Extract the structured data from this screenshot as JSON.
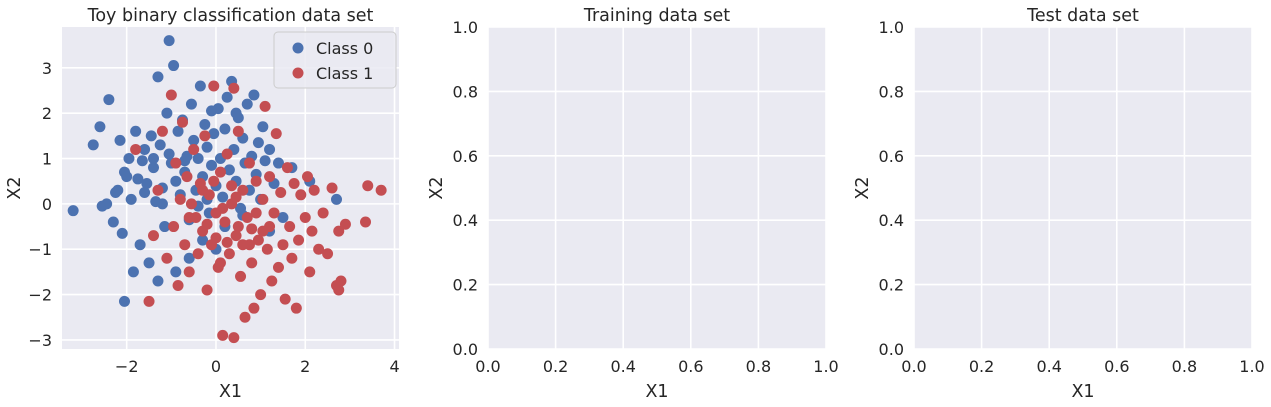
{
  "figure": {
    "background": "#ffffff",
    "axes_face": "#eaeaf2",
    "grid_color": "#ffffff",
    "text_color": "#262626"
  },
  "chart_data": [
    {
      "type": "scatter",
      "title": "Toy binary classification data set",
      "xlabel": "X1",
      "ylabel": "X2",
      "xlim": [
        -3.45,
        4.1
      ],
      "ylim": [
        -3.2,
        3.9
      ],
      "xticks": [
        -2,
        0,
        2,
        4
      ],
      "yticks": [
        -3,
        -2,
        -1,
        0,
        1,
        2,
        3
      ],
      "grid": true,
      "legend": "top-right",
      "series": [
        {
          "name": "Class 0",
          "color": "#4c72b0",
          "points": [
            [
              -3.2,
              -0.15
            ],
            [
              -2.75,
              1.3
            ],
            [
              -2.6,
              1.7
            ],
            [
              -2.55,
              -0.05
            ],
            [
              -2.45,
              0.0
            ],
            [
              -2.4,
              2.3
            ],
            [
              -2.3,
              -0.4
            ],
            [
              -2.25,
              0.25
            ],
            [
              -2.2,
              0.3
            ],
            [
              -2.15,
              1.4
            ],
            [
              -2.1,
              -0.65
            ],
            [
              -2.05,
              0.7
            ],
            [
              -2.0,
              0.6
            ],
            [
              -1.95,
              1.0
            ],
            [
              -1.9,
              0.1
            ],
            [
              -1.85,
              -1.5
            ],
            [
              -1.8,
              1.6
            ],
            [
              -1.75,
              0.55
            ],
            [
              -1.7,
              -0.9
            ],
            [
              -1.65,
              0.95
            ],
            [
              -1.6,
              1.2
            ],
            [
              -1.55,
              0.45
            ],
            [
              -1.5,
              -1.3
            ],
            [
              -1.45,
              1.5
            ],
            [
              -1.4,
              0.8
            ],
            [
              -1.35,
              0.05
            ],
            [
              -1.3,
              2.8
            ],
            [
              -1.25,
              1.3
            ],
            [
              -1.2,
              0.35
            ],
            [
              -1.15,
              -0.5
            ],
            [
              -1.1,
              2.0
            ],
            [
              -1.05,
              1.1
            ],
            [
              -1.0,
              0.9
            ],
            [
              -0.95,
              3.05
            ],
            [
              -1.05,
              3.6
            ],
            [
              -0.9,
              0.5
            ],
            [
              -0.85,
              1.6
            ],
            [
              -0.8,
              0.2
            ],
            [
              -0.75,
              1.85
            ],
            [
              -0.7,
              0.7
            ],
            [
              -0.65,
              1.05
            ],
            [
              -0.6,
              -0.35
            ],
            [
              -0.55,
              2.2
            ],
            [
              -0.5,
              1.4
            ],
            [
              -0.45,
              0.3
            ],
            [
              -0.4,
              1.0
            ],
            [
              -0.35,
              2.6
            ],
            [
              -0.3,
              0.6
            ],
            [
              -0.25,
              1.75
            ],
            [
              -0.2,
              1.25
            ],
            [
              -0.15,
              -0.2
            ],
            [
              -0.1,
              0.85
            ],
            [
              -0.05,
              1.55
            ],
            [
              0.0,
              0.4
            ],
            [
              0.05,
              2.1
            ],
            [
              0.1,
              1.0
            ],
            [
              0.15,
              0.15
            ],
            [
              0.2,
              1.65
            ],
            [
              0.25,
              2.35
            ],
            [
              0.3,
              0.75
            ],
            [
              0.35,
              2.7
            ],
            [
              0.4,
              1.2
            ],
            [
              0.45,
              0.5
            ],
            [
              0.5,
              1.9
            ],
            [
              0.55,
              -0.1
            ],
            [
              0.6,
              1.45
            ],
            [
              0.65,
              0.9
            ],
            [
              0.7,
              2.2
            ],
            [
              0.75,
              0.3
            ],
            [
              0.8,
              1.05
            ],
            [
              0.85,
              2.4
            ],
            [
              0.9,
              0.65
            ],
            [
              0.95,
              1.35
            ],
            [
              1.0,
              0.1
            ],
            [
              1.05,
              1.7
            ],
            [
              1.1,
              0.95
            ],
            [
              1.2,
              1.2
            ],
            [
              1.3,
              0.45
            ],
            [
              1.4,
              0.9
            ],
            [
              1.5,
              -0.3
            ],
            [
              -0.3,
              -0.8
            ],
            [
              -0.6,
              -1.2
            ],
            [
              -1.3,
              -1.7
            ],
            [
              -0.9,
              -1.5
            ],
            [
              -2.05,
              -2.15
            ],
            [
              -1.2,
              0.0
            ],
            [
              -1.6,
              0.25
            ],
            [
              -0.4,
              -0.05
            ],
            [
              0.2,
              -0.5
            ],
            [
              0.6,
              -0.25
            ],
            [
              1.7,
              0.8
            ],
            [
              2.1,
              0.5
            ],
            [
              2.7,
              0.1
            ],
            [
              1.2,
              -0.6
            ],
            [
              0.0,
              -1.0
            ],
            [
              -0.2,
              0.1
            ],
            [
              -0.7,
              0.95
            ],
            [
              -1.4,
              1.0
            ],
            [
              -0.1,
              2.05
            ],
            [
              0.45,
              2.0
            ]
          ]
        },
        {
          "name": "Class 1",
          "color": "#c44e52",
          "points": [
            [
              -1.8,
              1.2
            ],
            [
              -1.5,
              -2.15
            ],
            [
              -1.4,
              -0.7
            ],
            [
              -1.3,
              0.3
            ],
            [
              -1.2,
              1.6
            ],
            [
              -1.1,
              -1.2
            ],
            [
              -1.0,
              2.4
            ],
            [
              -0.95,
              -0.5
            ],
            [
              -0.9,
              0.9
            ],
            [
              -0.85,
              -1.8
            ],
            [
              -0.8,
              0.1
            ],
            [
              -0.75,
              1.8
            ],
            [
              -0.7,
              -0.9
            ],
            [
              -0.65,
              0.6
            ],
            [
              -0.6,
              -1.5
            ],
            [
              -0.55,
              0.0
            ],
            [
              -0.5,
              1.2
            ],
            [
              -0.45,
              -0.3
            ],
            [
              -0.4,
              -1.1
            ],
            [
              -0.35,
              0.45
            ],
            [
              -0.3,
              -0.6
            ],
            [
              -0.25,
              1.5
            ],
            [
              -0.2,
              -1.9
            ],
            [
              -0.15,
              0.2
            ],
            [
              -0.1,
              -0.9
            ],
            [
              -0.05,
              2.6
            ],
            [
              0.0,
              -0.2
            ],
            [
              0.05,
              -1.4
            ],
            [
              0.1,
              0.7
            ],
            [
              0.15,
              -2.9
            ],
            [
              0.2,
              -0.4
            ],
            [
              0.25,
              1.1
            ],
            [
              0.3,
              -1.1
            ],
            [
              0.35,
              0.0
            ],
            [
              0.4,
              -2.95
            ],
            [
              0.45,
              -0.7
            ],
            [
              0.5,
              1.6
            ],
            [
              0.55,
              -1.6
            ],
            [
              0.6,
              0.3
            ],
            [
              0.65,
              -2.5
            ],
            [
              0.7,
              -0.3
            ],
            [
              0.75,
              0.9
            ],
            [
              0.8,
              -1.3
            ],
            [
              0.85,
              -2.3
            ],
            [
              0.9,
              0.5
            ],
            [
              0.95,
              -0.8
            ],
            [
              1.0,
              -2.0
            ],
            [
              1.05,
              0.1
            ],
            [
              1.1,
              2.15
            ],
            [
              1.15,
              -1.0
            ],
            [
              1.2,
              0.6
            ],
            [
              1.25,
              -1.7
            ],
            [
              1.3,
              -0.2
            ],
            [
              1.35,
              1.55
            ],
            [
              1.4,
              -1.4
            ],
            [
              1.45,
              0.25
            ],
            [
              1.5,
              -0.9
            ],
            [
              1.55,
              -2.1
            ],
            [
              1.6,
              0.8
            ],
            [
              1.65,
              -0.5
            ],
            [
              1.7,
              -1.2
            ],
            [
              1.75,
              0.45
            ],
            [
              1.8,
              -2.3
            ],
            [
              1.85,
              -0.8
            ],
            [
              1.9,
              0.2
            ],
            [
              2.0,
              -0.3
            ],
            [
              2.05,
              0.6
            ],
            [
              2.1,
              -1.5
            ],
            [
              2.15,
              -0.6
            ],
            [
              2.2,
              0.3
            ],
            [
              2.3,
              -1.0
            ],
            [
              2.4,
              -0.2
            ],
            [
              2.5,
              -1.1
            ],
            [
              2.6,
              0.35
            ],
            [
              2.7,
              -1.8
            ],
            [
              2.75,
              -0.6
            ],
            [
              2.8,
              -1.7
            ],
            [
              3.4,
              0.4
            ],
            [
              3.35,
              -0.4
            ],
            [
              3.7,
              0.3
            ],
            [
              2.75,
              -1.9
            ],
            [
              2.9,
              -0.45
            ],
            [
              0.4,
              2.55
            ],
            [
              -0.05,
              0.5
            ],
            [
              0.5,
              -0.5
            ],
            [
              0.15,
              -0.1
            ],
            [
              -0.3,
              0.3
            ],
            [
              0.75,
              -0.9
            ],
            [
              1.2,
              -0.5
            ],
            [
              0.35,
              0.4
            ],
            [
              -0.6,
              -0.3
            ],
            [
              0.0,
              -0.75
            ],
            [
              0.6,
              -0.9
            ],
            [
              0.9,
              -0.2
            ],
            [
              1.05,
              -0.6
            ],
            [
              0.25,
              -0.85
            ],
            [
              -0.2,
              -0.45
            ],
            [
              0.45,
              0.15
            ],
            [
              0.8,
              -0.55
            ],
            [
              0.1,
              -1.3
            ]
          ]
        }
      ]
    },
    {
      "type": "scatter",
      "title": "Training data set",
      "xlabel": "X1",
      "ylabel": "X2",
      "xlim": [
        0,
        1
      ],
      "ylim": [
        0,
        1
      ],
      "xticks": [
        "0.0",
        "0.2",
        "0.4",
        "0.6",
        "0.8",
        "1.0"
      ],
      "yticks": [
        "0.0",
        "0.2",
        "0.4",
        "0.6",
        "0.8",
        "1.0"
      ],
      "grid": true,
      "series": []
    },
    {
      "type": "scatter",
      "title": "Test data set",
      "xlabel": "X1",
      "ylabel": "X2",
      "xlim": [
        0,
        1
      ],
      "ylim": [
        0,
        1
      ],
      "xticks": [
        "0.0",
        "0.2",
        "0.4",
        "0.6",
        "0.8",
        "1.0"
      ],
      "yticks": [
        "0.0",
        "0.2",
        "0.4",
        "0.6",
        "0.8",
        "1.0"
      ],
      "grid": true,
      "series": []
    }
  ]
}
